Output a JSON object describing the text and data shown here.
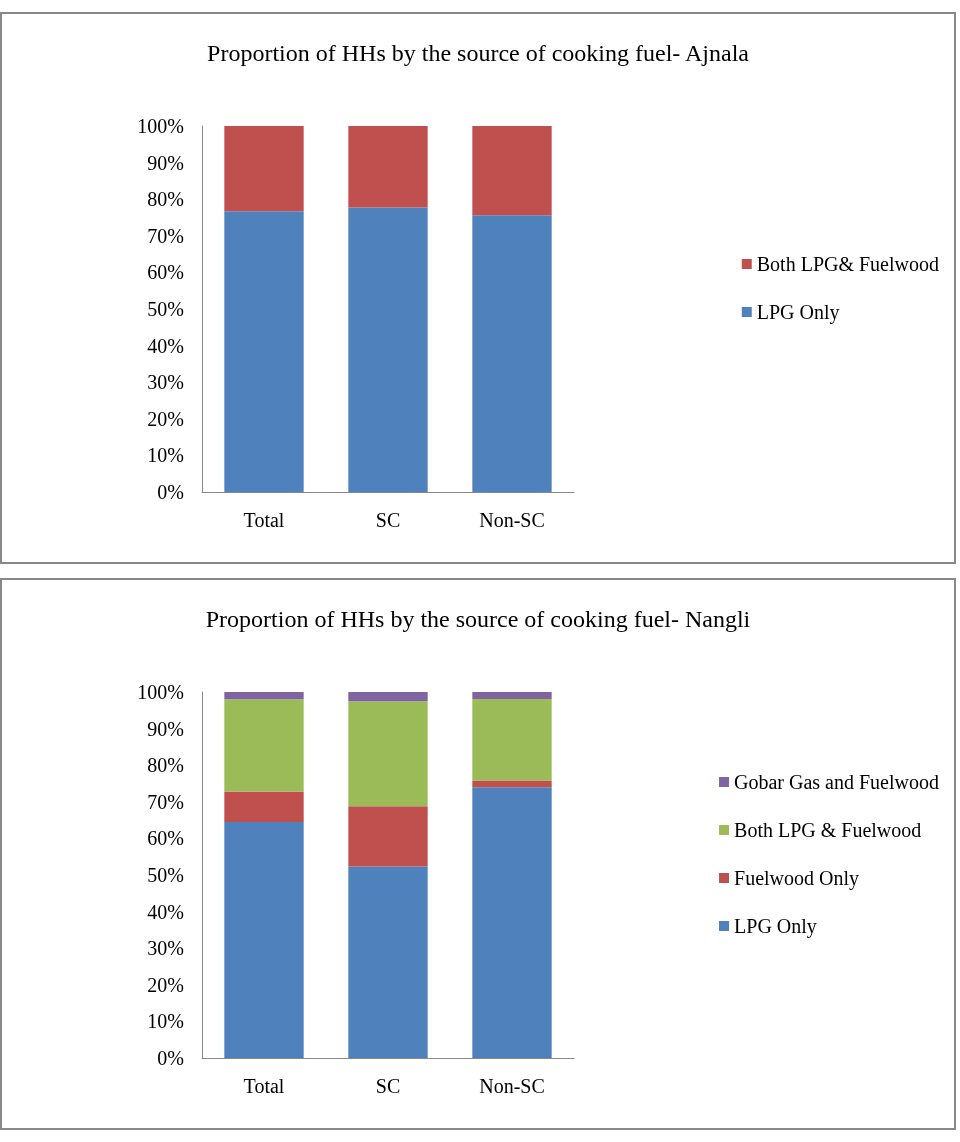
{
  "chart_data": [
    {
      "type": "bar",
      "title": "Proportion of HHs by the source of cooking fuel- Ajnala",
      "categories": [
        "Total",
        "SC",
        "Non-SC"
      ],
      "stacked": true,
      "legend": "right",
      "grid": false,
      "ylim": [
        0,
        100
      ],
      "yticks": [
        {
          "value": 0,
          "label": "0%"
        },
        {
          "value": 10,
          "label": "10%"
        },
        {
          "value": 20,
          "label": "20%"
        },
        {
          "value": 30,
          "label": "30%"
        },
        {
          "value": 40,
          "label": "40%"
        },
        {
          "value": 50,
          "label": "50%"
        },
        {
          "value": 60,
          "label": "60%"
        },
        {
          "value": 70,
          "label": "70%"
        },
        {
          "value": 80,
          "label": "80%"
        },
        {
          "value": 90,
          "label": "90%"
        },
        {
          "value": 100,
          "label": "100%"
        }
      ],
      "series": [
        {
          "name": "LPG Only",
          "color": "#4f81bd",
          "values": [
            76.7,
            77.7,
            75.6
          ]
        },
        {
          "name": "Both LPG& Fuelwood",
          "color": "#c0504d",
          "values": [
            23.3,
            22.3,
            24.4
          ]
        }
      ]
    },
    {
      "type": "bar",
      "title": "Proportion of HHs by the source of cooking fuel- Nangli",
      "categories": [
        "Total",
        "SC",
        "Non-SC"
      ],
      "stacked": true,
      "legend": "right",
      "grid": false,
      "ylim": [
        0,
        100
      ],
      "yticks": [
        {
          "value": 0,
          "label": "0%"
        },
        {
          "value": 10,
          "label": "10%"
        },
        {
          "value": 20,
          "label": "20%"
        },
        {
          "value": 30,
          "label": "30%"
        },
        {
          "value": 40,
          "label": "40%"
        },
        {
          "value": 50,
          "label": "50%"
        },
        {
          "value": 60,
          "label": "60%"
        },
        {
          "value": 70,
          "label": "70%"
        },
        {
          "value": 80,
          "label": "80%"
        },
        {
          "value": 90,
          "label": "90%"
        },
        {
          "value": 100,
          "label": "100%"
        }
      ],
      "series": [
        {
          "name": "LPG Only",
          "color": "#4f81bd",
          "values": [
            64.5,
            52.3,
            74.0
          ]
        },
        {
          "name": "Fuelwood Only",
          "color": "#c0504d",
          "values": [
            8.3,
            16.5,
            1.8
          ]
        },
        {
          "name": "Both LPG & Fuelwood",
          "color": "#9bbb59",
          "values": [
            25.2,
            28.7,
            22.3
          ]
        },
        {
          "name": "Gobar Gas and Fuelwood",
          "color": "#8064a2",
          "values": [
            2.0,
            2.5,
            1.9
          ]
        }
      ]
    }
  ]
}
